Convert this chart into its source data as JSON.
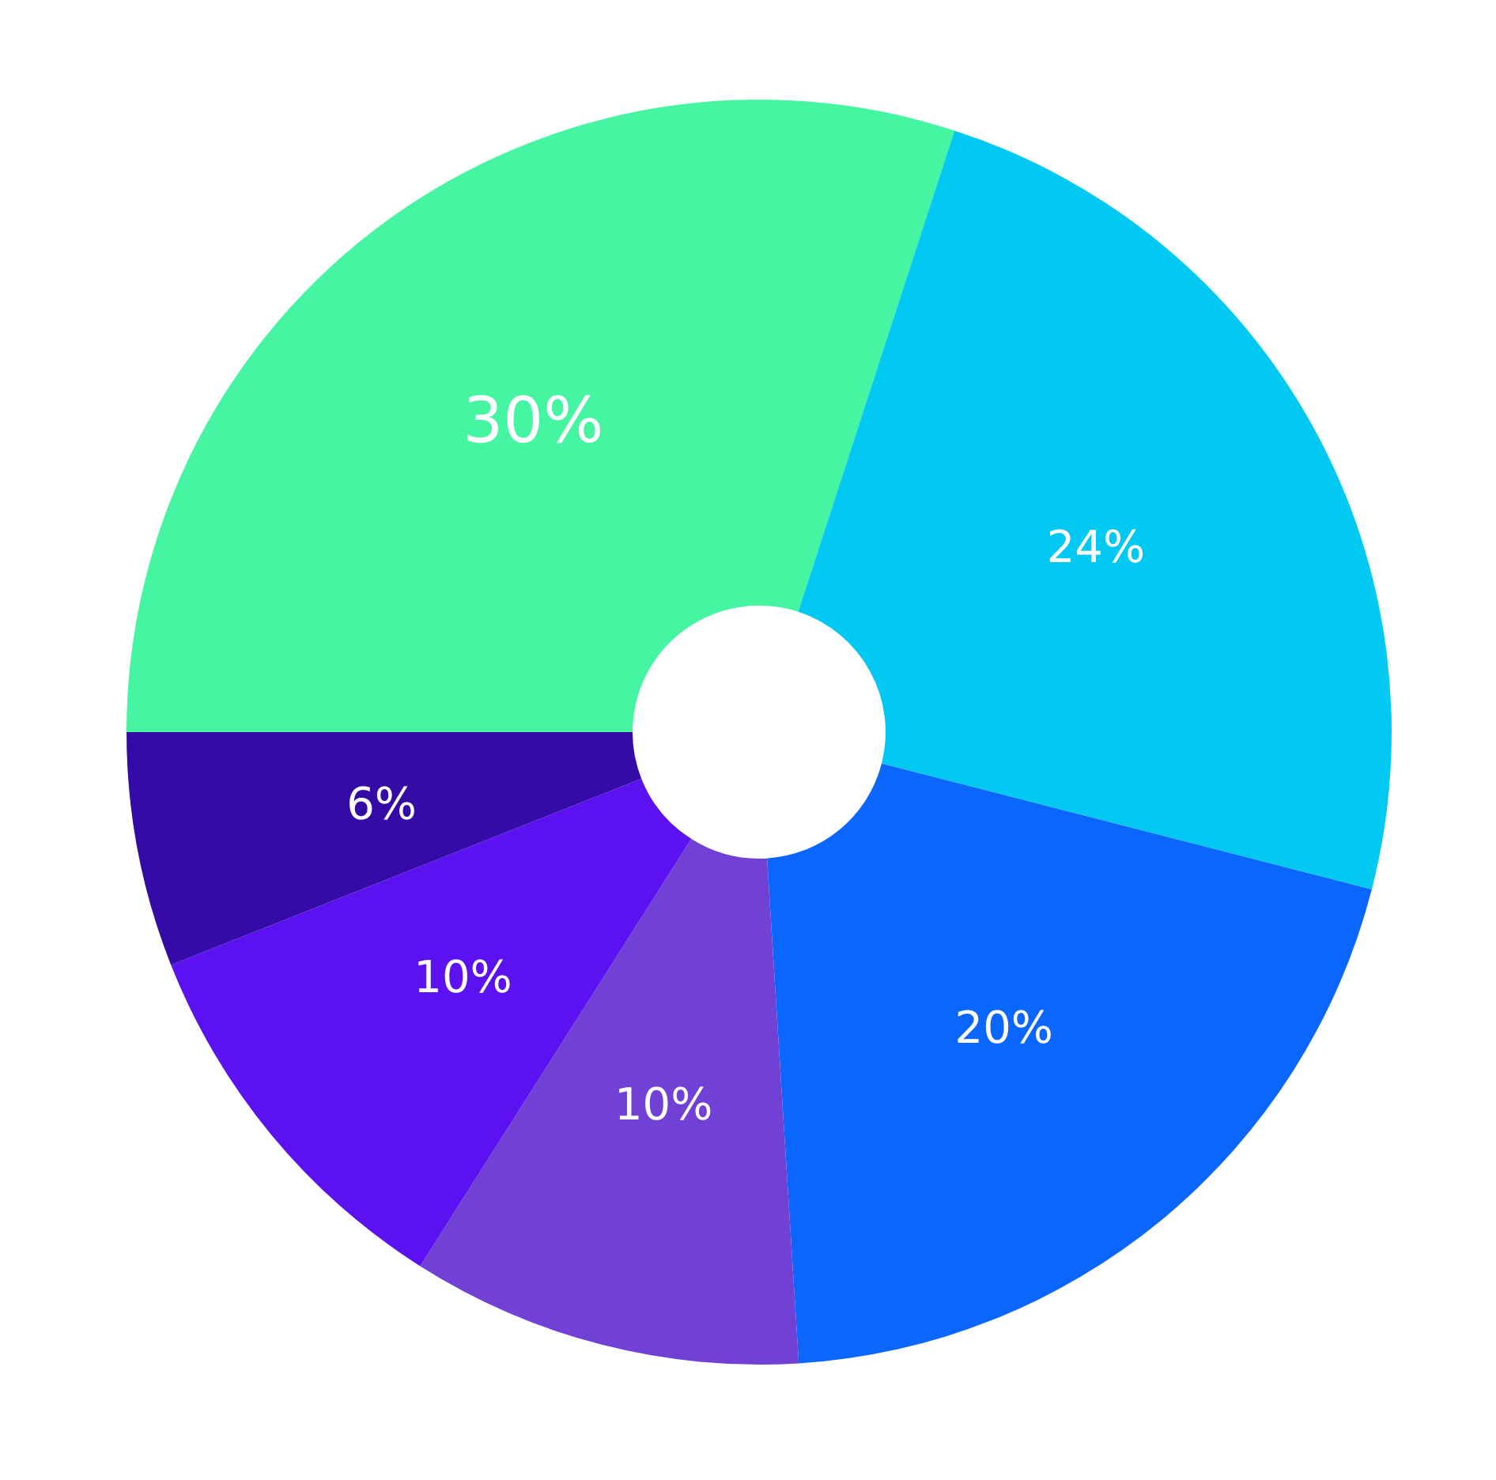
{
  "chart_data": {
    "type": "donut",
    "categories": [
      null,
      null,
      null,
      null,
      null,
      null
    ],
    "values": [
      30,
      24,
      20,
      10,
      10,
      6
    ],
    "colors": [
      "#45f5a2",
      "#02c9f2",
      "#0a66fd",
      "#7140d4",
      "#5c12f0",
      "#340ba6"
    ],
    "value_labels": [
      "30%",
      "24%",
      "20%",
      "10%",
      "10%",
      "6%"
    ]
  }
}
